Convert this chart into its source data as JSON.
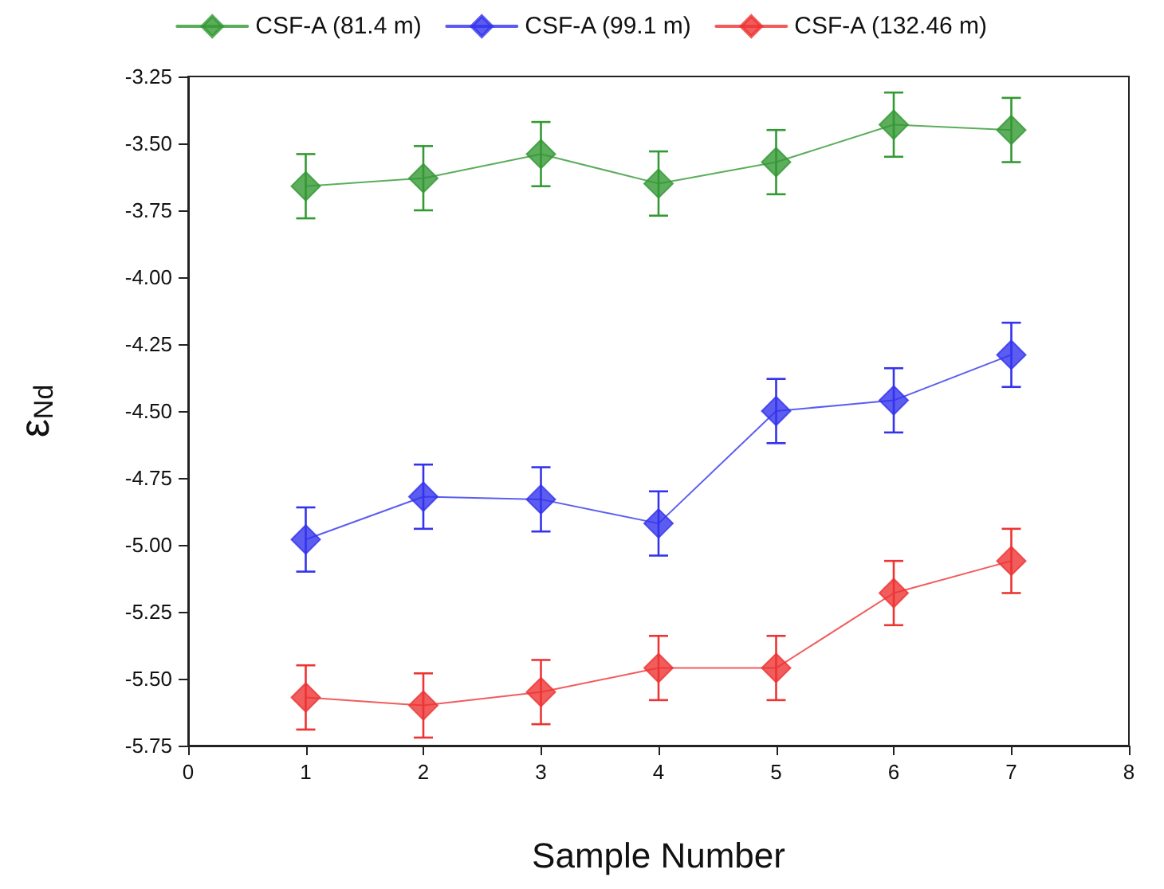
{
  "chart_data": {
    "type": "line",
    "xlabel": "Sample Number",
    "ylabel": "ε$_{Nd}$",
    "x": [
      1,
      2,
      3,
      4,
      5,
      6,
      7
    ],
    "series": [
      {
        "name": "CSF-A (81.4 m)",
        "color": "#339933",
        "values": [
          -3.66,
          -3.63,
          -3.54,
          -3.65,
          -3.57,
          -3.43,
          -3.45
        ],
        "errors": [
          0.12,
          0.12,
          0.12,
          0.12,
          0.12,
          0.12,
          0.12
        ]
      },
      {
        "name": "CSF-A (99.1 m)",
        "color": "#3333ee",
        "values": [
          -4.98,
          -4.82,
          -4.83,
          -4.92,
          -4.5,
          -4.46,
          -4.29
        ],
        "errors": [
          0.12,
          0.12,
          0.12,
          0.12,
          0.12,
          0.12,
          0.12
        ]
      },
      {
        "name": "CSF-A (132.46 m)",
        "color": "#ee3333",
        "values": [
          -5.57,
          -5.6,
          -5.55,
          -5.46,
          -5.46,
          -5.18,
          -5.06
        ],
        "errors": [
          0.12,
          0.12,
          0.12,
          0.12,
          0.12,
          0.12,
          0.12
        ]
      }
    ],
    "xlim": [
      0,
      8
    ],
    "xticks": [
      0,
      1,
      2,
      3,
      4,
      5,
      6,
      7,
      8
    ],
    "ylim": [
      -5.75,
      -3.25
    ],
    "yticks": [
      -5.75,
      {
        "value": -5.5,
        "label": "-5.50"
      },
      -5.25,
      {
        "value": -5.0,
        "label": "-5.00"
      },
      -4.75,
      {
        "value": -4.5,
        "label": "-4.50"
      },
      -4.25,
      {
        "value": -4.0,
        "label": "-4.00"
      },
      -3.75,
      {
        "value": -3.5,
        "label": "-3.50"
      },
      -3.25
    ],
    "grid": false,
    "legend": "top",
    "marker": "diamond",
    "line_style": "solid"
  }
}
